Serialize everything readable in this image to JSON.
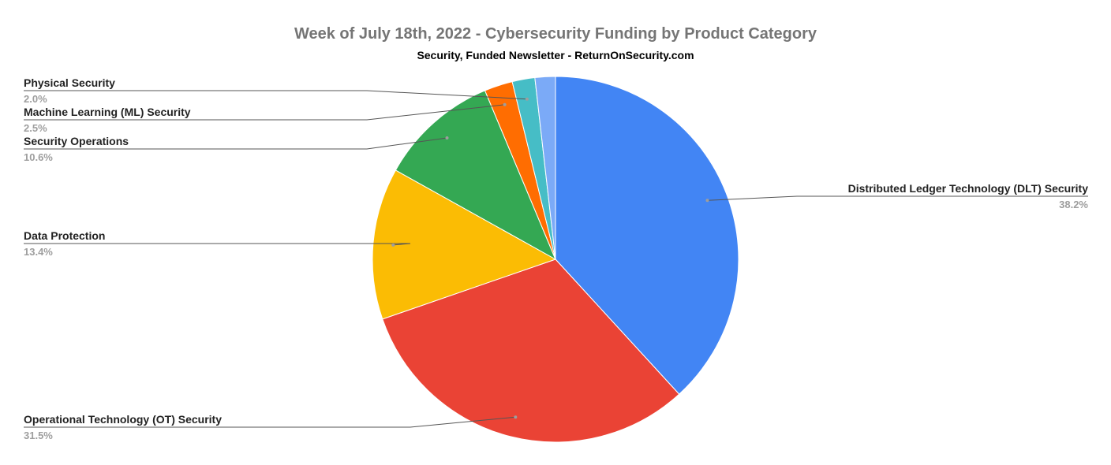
{
  "chart_data": {
    "type": "pie",
    "title": "Week of July 18th, 2022 - Cybersecurity Funding by Product Category",
    "subtitle": "Security, Funded Newsletter - ReturnOnSecurity.com",
    "legend": "labels",
    "slices": [
      {
        "label": "Distributed Ledger Technology (DLT) Security",
        "value": 38.2,
        "percent_label": "38.2%",
        "color": "#4285f4"
      },
      {
        "label": "Operational Technology (OT) Security",
        "value": 31.5,
        "percent_label": "31.5%",
        "color": "#ea4335"
      },
      {
        "label": "Data Protection",
        "value": 13.4,
        "percent_label": "13.4%",
        "color": "#fbbc04"
      },
      {
        "label": "Security Operations",
        "value": 10.6,
        "percent_label": "10.6%",
        "color": "#34a853"
      },
      {
        "label": "Machine Learning (ML) Security",
        "value": 2.5,
        "percent_label": "2.5%",
        "color": "#ff6d01"
      },
      {
        "label": "Physical Security",
        "value": 2.0,
        "percent_label": "2.0%",
        "color": "#46bdc6"
      },
      {
        "label": "",
        "value": 1.8,
        "percent_label": "",
        "color": "#7baaf7"
      }
    ]
  }
}
